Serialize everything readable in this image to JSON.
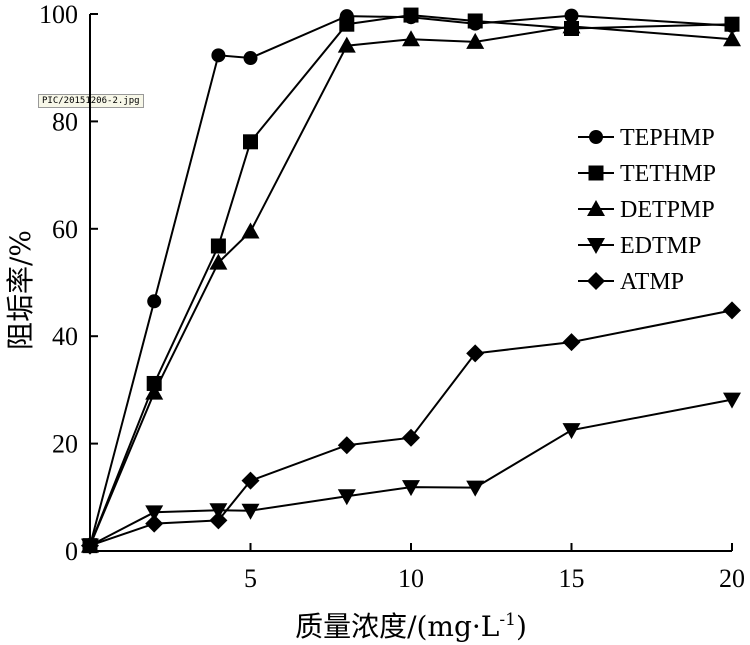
{
  "file_tag": "PIC/20151206-2.jpg",
  "chart_data": {
    "type": "line",
    "title": "",
    "xlabel": "质量浓度/(mg·L",
    "xlabel_sup": "-1",
    "xlabel_end": ")",
    "ylabel": "阻垢率/%",
    "xlim": [
      0,
      20
    ],
    "ylim": [
      0,
      100
    ],
    "xticks": [
      5,
      10,
      15,
      20
    ],
    "yticks": [
      0,
      20,
      40,
      60,
      80,
      100
    ],
    "grid": false,
    "legend_position": "right",
    "series": [
      {
        "name": "TEPHMP",
        "marker": "circle",
        "x": [
          0,
          2,
          4,
          5,
          8,
          10,
          12,
          15,
          20
        ],
        "y": [
          1,
          46.5,
          92.3,
          91.8,
          99.6,
          99.4,
          98.2,
          99.7,
          97.8
        ]
      },
      {
        "name": "TETHMP",
        "marker": "square",
        "x": [
          0,
          2,
          4,
          5,
          8,
          10,
          12,
          15,
          20
        ],
        "y": [
          1,
          31.2,
          56.8,
          76.2,
          98.1,
          99.8,
          98.7,
          97.3,
          98.1
        ]
      },
      {
        "name": "DETPMP",
        "marker": "triangle-up",
        "x": [
          0,
          2,
          4,
          5,
          8,
          10,
          12,
          15,
          20
        ],
        "y": [
          1,
          29.5,
          53.7,
          59.5,
          94.1,
          95.3,
          94.8,
          97.7,
          95.3
        ]
      },
      {
        "name": "EDTMP",
        "marker": "triangle-down",
        "x": [
          0,
          2,
          4,
          5,
          8,
          10,
          12,
          15,
          20
        ],
        "y": [
          1,
          7.2,
          7.6,
          7.5,
          10.2,
          11.9,
          11.8,
          22.5,
          28.2
        ]
      },
      {
        "name": "ATMP",
        "marker": "diamond",
        "x": [
          0,
          2,
          4,
          5,
          8,
          10,
          12,
          15,
          20
        ],
        "y": [
          1,
          5.1,
          5.7,
          13.1,
          19.7,
          21.1,
          36.8,
          38.9,
          44.8
        ]
      }
    ]
  }
}
